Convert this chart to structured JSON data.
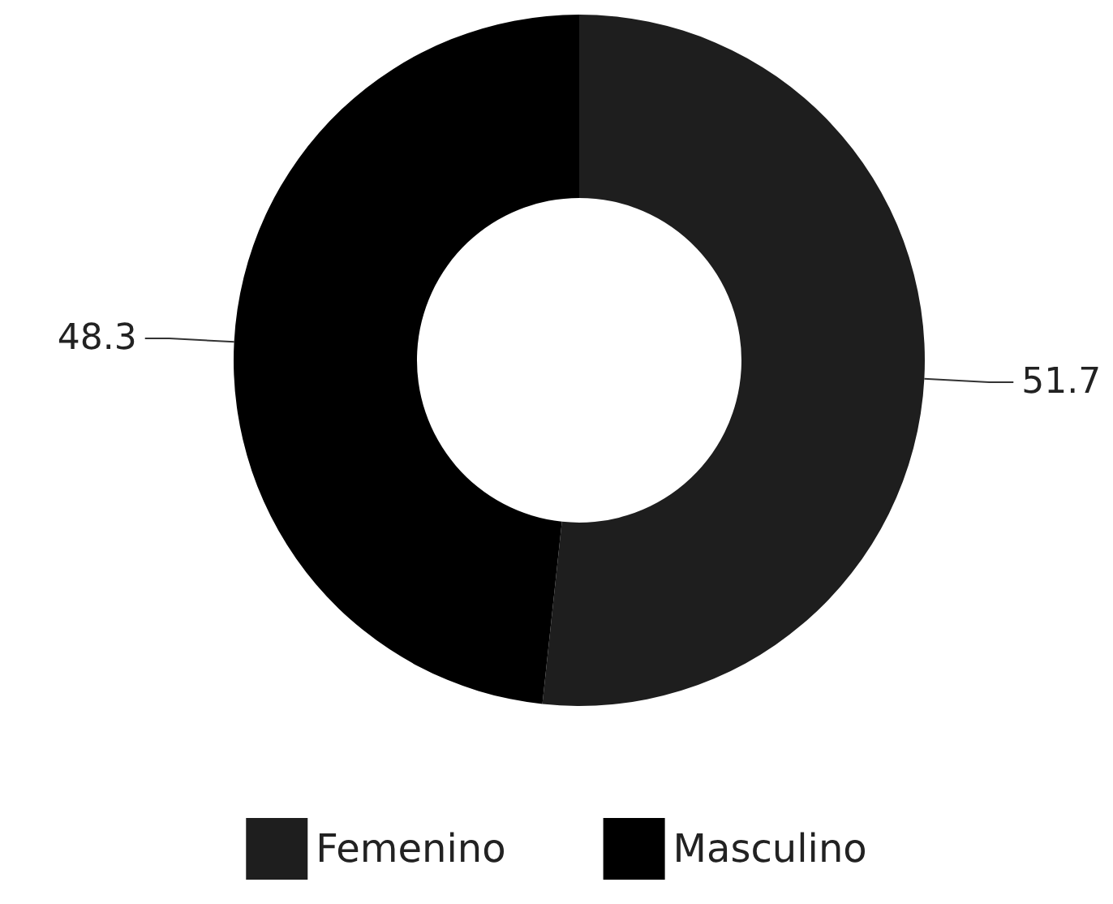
{
  "chart_data": {
    "type": "donut",
    "categories": [
      "Femenino",
      "Masculino"
    ],
    "values": [
      51.7,
      48.3
    ],
    "colors": [
      "#1e1e1e",
      "#000000"
    ],
    "data_labels": true,
    "legend": "bottom"
  }
}
